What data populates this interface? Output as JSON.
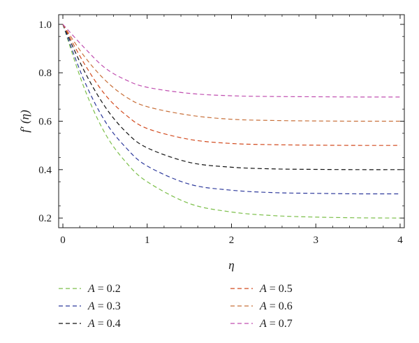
{
  "chart_data": {
    "type": "line",
    "title": "",
    "xlabel": "η",
    "ylabel": "f′ (η)",
    "xlim": [
      -0.05,
      4.05
    ],
    "ylim": [
      0.16,
      1.04
    ],
    "xticks": [
      0,
      1,
      2,
      3,
      4
    ],
    "xtick_labels": [
      "0",
      "1",
      "2",
      "3",
      "4"
    ],
    "yticks": [
      0.2,
      0.4,
      0.6,
      0.8,
      1.0
    ],
    "ytick_labels": [
      "0.2",
      "0.4",
      "0.6",
      "0.8",
      "1.0"
    ],
    "grid": false,
    "line_style": "dashed",
    "legend_position": "below",
    "x": [
      0,
      0.25,
      0.5,
      0.75,
      1.0,
      1.5,
      2.0,
      2.5,
      3.0,
      3.5,
      4.0
    ],
    "series": [
      {
        "name": "A = 0.2",
        "legend_label": "A = 0.2",
        "color": "#7cbf4a",
        "values": [
          1.0,
          0.74,
          0.55,
          0.43,
          0.35,
          0.26,
          0.225,
          0.21,
          0.204,
          0.201,
          0.2
        ]
      },
      {
        "name": "A = 0.3",
        "legend_label": "A = 0.3",
        "color": "#2e3a9c",
        "values": [
          1.0,
          0.77,
          0.6,
          0.49,
          0.415,
          0.34,
          0.315,
          0.305,
          0.302,
          0.3,
          0.3
        ]
      },
      {
        "name": "A = 0.4",
        "legend_label": "A = 0.4",
        "color": "#111111",
        "values": [
          1.0,
          0.81,
          0.66,
          0.555,
          0.49,
          0.43,
          0.41,
          0.403,
          0.401,
          0.4,
          0.4
        ]
      },
      {
        "name": "A = 0.5",
        "legend_label": "A = 0.5",
        "color": "#d24a1e",
        "values": [
          1.0,
          0.84,
          0.71,
          0.625,
          0.57,
          0.525,
          0.508,
          0.503,
          0.501,
          0.5,
          0.5
        ]
      },
      {
        "name": "A = 0.6",
        "legend_label": "A = 0.6",
        "color": "#c8703a",
        "values": [
          1.0,
          0.87,
          0.77,
          0.7,
          0.66,
          0.625,
          0.608,
          0.603,
          0.601,
          0.6,
          0.6
        ]
      },
      {
        "name": "A = 0.7",
        "legend_label": "A = 0.7",
        "color": "#c04fb0",
        "values": [
          1.0,
          0.905,
          0.82,
          0.77,
          0.74,
          0.715,
          0.705,
          0.702,
          0.701,
          0.7,
          0.7
        ]
      }
    ]
  }
}
